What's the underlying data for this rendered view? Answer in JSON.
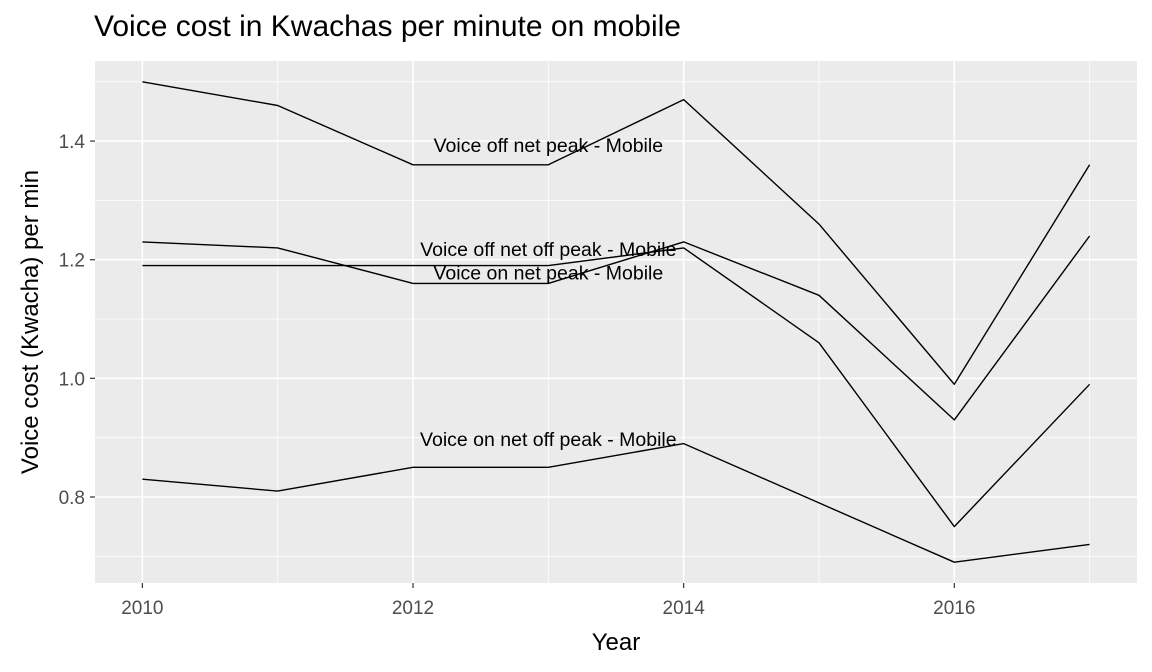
{
  "chart_data": {
    "type": "line",
    "title": "Voice cost in Kwachas per minute on mobile",
    "xlabel": "Year",
    "ylabel": "Voice cost (Kwacha) per min",
    "x": [
      2010,
      2011,
      2012,
      2013,
      2014,
      2015,
      2016,
      2017
    ],
    "xlim": [
      2009.65,
      2017.35
    ],
    "ylim": [
      0.655,
      1.535
    ],
    "x_ticks": [
      2010,
      2012,
      2014,
      2016
    ],
    "y_ticks": [
      0.8,
      1.0,
      1.2,
      1.4
    ],
    "x_tick_labels": [
      "2010",
      "2012",
      "2014",
      "2016"
    ],
    "y_tick_labels": [
      "0.8",
      "1.0",
      "1.2",
      "1.4"
    ],
    "grid": true,
    "legend": "none",
    "background": "#ebebeb",
    "line_color": "#000000",
    "series": [
      {
        "name": "Voice off net peak - Mobile",
        "values": [
          1.5,
          1.46,
          1.36,
          1.36,
          1.47,
          1.26,
          0.99,
          1.36
        ],
        "label_at": [
          2013,
          1.39
        ]
      },
      {
        "name": "Voice off net off peak - Mobile",
        "values": [
          1.23,
          1.22,
          1.16,
          1.16,
          1.23,
          1.14,
          0.93,
          1.24
        ],
        "label_at": [
          2013,
          1.215
        ]
      },
      {
        "name": "Voice on net peak - Mobile",
        "values": [
          1.19,
          1.19,
          1.19,
          1.19,
          1.22,
          1.06,
          0.75,
          0.99
        ],
        "label_at": [
          2013,
          1.175
        ]
      },
      {
        "name": "Voice on net off peak - Mobile",
        "values": [
          0.83,
          0.81,
          0.85,
          0.85,
          0.89,
          0.79,
          0.69,
          0.72
        ],
        "label_at": [
          2013,
          0.895
        ]
      }
    ]
  }
}
